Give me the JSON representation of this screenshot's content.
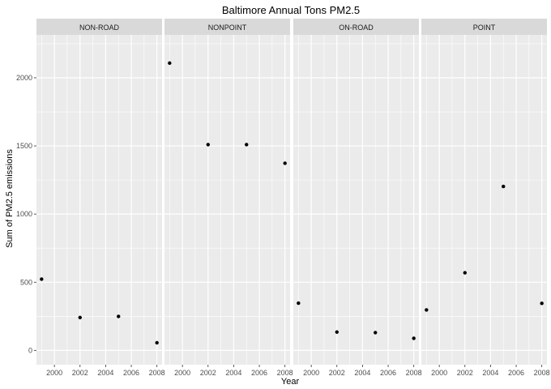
{
  "chart_data": {
    "type": "scatter",
    "title": "Baltimore Annual Tons PM2.5",
    "xlabel": "Year",
    "ylabel": "Sum of PM2.5 emissions",
    "x_ticks": [
      2000,
      2002,
      2004,
      2006,
      2008
    ],
    "y_ticks": [
      0,
      500,
      1000,
      1500,
      2000
    ],
    "xlim": [
      1998.6,
      2008.4
    ],
    "ylim": [
      -105,
      2315
    ],
    "grid": true,
    "legend": "none",
    "panels": [
      {
        "name": "NON-ROAD",
        "points": [
          {
            "x": 1999,
            "y": 522.9
          },
          {
            "x": 2002,
            "y": 240.8
          },
          {
            "x": 2005,
            "y": 248.9
          },
          {
            "x": 2008,
            "y": 55.8
          }
        ]
      },
      {
        "name": "NONPOINT",
        "points": [
          {
            "x": 1999,
            "y": 2107.6
          },
          {
            "x": 2002,
            "y": 1509.5
          },
          {
            "x": 2005,
            "y": 1509.5
          },
          {
            "x": 2008,
            "y": 1373.2
          }
        ]
      },
      {
        "name": "ON-ROAD",
        "points": [
          {
            "x": 1999,
            "y": 346.8
          },
          {
            "x": 2002,
            "y": 134.3
          },
          {
            "x": 2005,
            "y": 130.4
          },
          {
            "x": 2008,
            "y": 88.3
          }
        ]
      },
      {
        "name": "POINT",
        "points": [
          {
            "x": 1999,
            "y": 296.8
          },
          {
            "x": 2002,
            "y": 569.3
          },
          {
            "x": 2005,
            "y": 1202.5
          },
          {
            "x": 2008,
            "y": 345.0
          }
        ]
      }
    ]
  },
  "colors": {
    "panel_bg": "#ebebeb",
    "strip_bg": "#d9d9d9",
    "grid": "#ffffff",
    "point": "#000000",
    "tick_text": "#4d4d4d"
  }
}
